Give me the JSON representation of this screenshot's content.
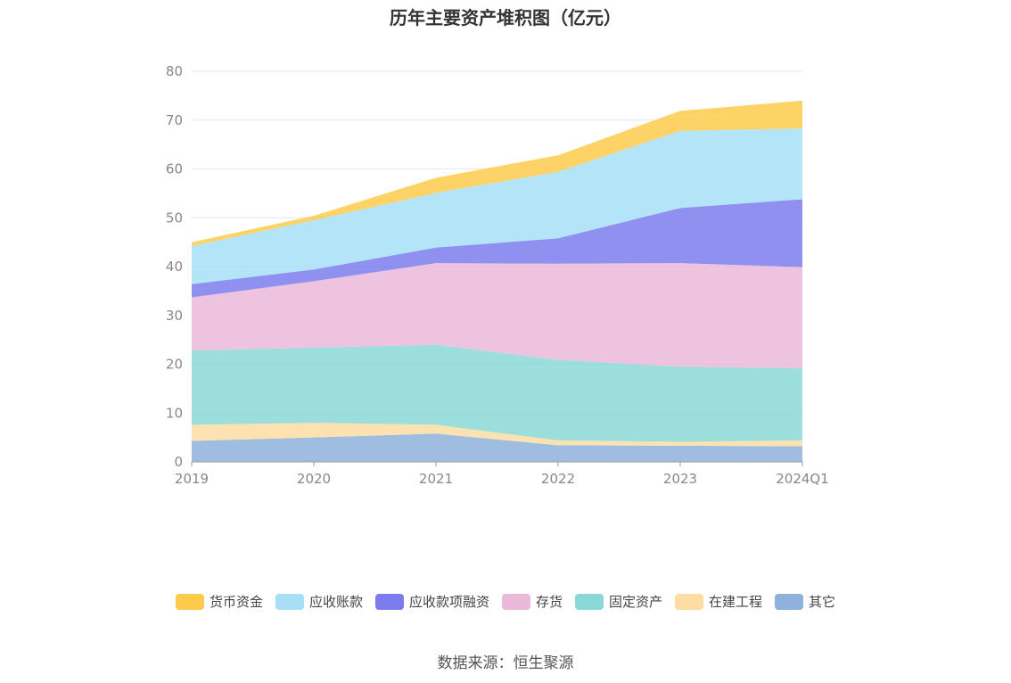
{
  "chart_data": {
    "type": "area",
    "stacked": true,
    "title": "历年主要资产堆积图（亿元）",
    "categories": [
      "2019",
      "2020",
      "2021",
      "2022",
      "2023",
      "2024Q1"
    ],
    "ylim": [
      0,
      80
    ],
    "yticks": [
      "0",
      "10",
      "20",
      "30",
      "40",
      "50",
      "60",
      "70",
      "80"
    ],
    "series": [
      {
        "name": "其它",
        "color": "#8eb1dc",
        "values": [
          4.3,
          5.0,
          5.8,
          3.4,
          3.3,
          3.2
        ]
      },
      {
        "name": "在建工程",
        "color": "#fddda3",
        "values": [
          3.3,
          3.0,
          1.8,
          1.0,
          0.8,
          1.2
        ]
      },
      {
        "name": "固定资产",
        "color": "#8ad8d6",
        "values": [
          15.2,
          15.4,
          16.4,
          16.5,
          15.4,
          14.8
        ]
      },
      {
        "name": "存货",
        "color": "#eab9d9",
        "values": [
          10.9,
          13.6,
          16.7,
          19.7,
          21.2,
          20.7
        ]
      },
      {
        "name": "应收款项融资",
        "color": "#7c7cee",
        "values": [
          2.7,
          2.4,
          3.2,
          5.2,
          11.3,
          13.9
        ]
      },
      {
        "name": "应收账款",
        "color": "#a7dff6",
        "values": [
          7.8,
          10.1,
          11.2,
          13.6,
          15.8,
          14.5
        ]
      },
      {
        "name": "货币资金",
        "color": "#fdcb4c",
        "values": [
          0.8,
          0.9,
          3.1,
          3.4,
          4.1,
          5.7
        ]
      }
    ],
    "legend_order": [
      "货币资金",
      "应收账款",
      "应收款项融资",
      "存货",
      "固定资产",
      "在建工程",
      "其它"
    ],
    "legend_position": "bottom",
    "grid": true
  },
  "source_text": "数据来源：恒生聚源"
}
